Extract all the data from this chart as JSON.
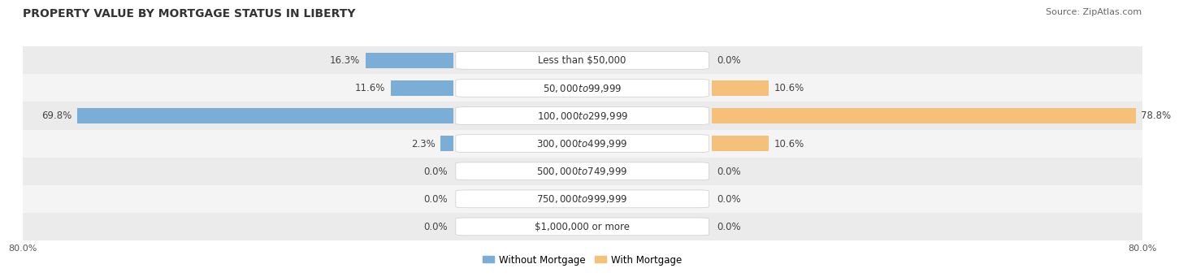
{
  "title": "PROPERTY VALUE BY MORTGAGE STATUS IN LIBERTY",
  "source": "Source: ZipAtlas.com",
  "categories": [
    "Less than $50,000",
    "$50,000 to $99,999",
    "$100,000 to $299,999",
    "$300,000 to $499,999",
    "$500,000 to $749,999",
    "$750,000 to $999,999",
    "$1,000,000 or more"
  ],
  "without_mortgage": [
    16.3,
    11.6,
    69.8,
    2.3,
    0.0,
    0.0,
    0.0
  ],
  "with_mortgage": [
    0.0,
    10.6,
    78.8,
    10.6,
    0.0,
    0.0,
    0.0
  ],
  "color_without": "#7aaed6",
  "color_with": "#f5c07a",
  "xlim": [
    0,
    80
  ],
  "xticklabel_left": "80.0%",
  "xticklabel_right": "80.0%",
  "legend_label_without": "Without Mortgage",
  "legend_label_with": "With Mortgage",
  "bar_height": 0.55,
  "row_bg_even": "#ebebeb",
  "row_bg_odd": "#f4f4f4",
  "title_fontsize": 10,
  "source_fontsize": 8,
  "label_fontsize": 8.5,
  "category_fontsize": 8.5,
  "min_bar_val": 5.0,
  "gridspec_ratios": [
    5,
    3,
    5
  ]
}
